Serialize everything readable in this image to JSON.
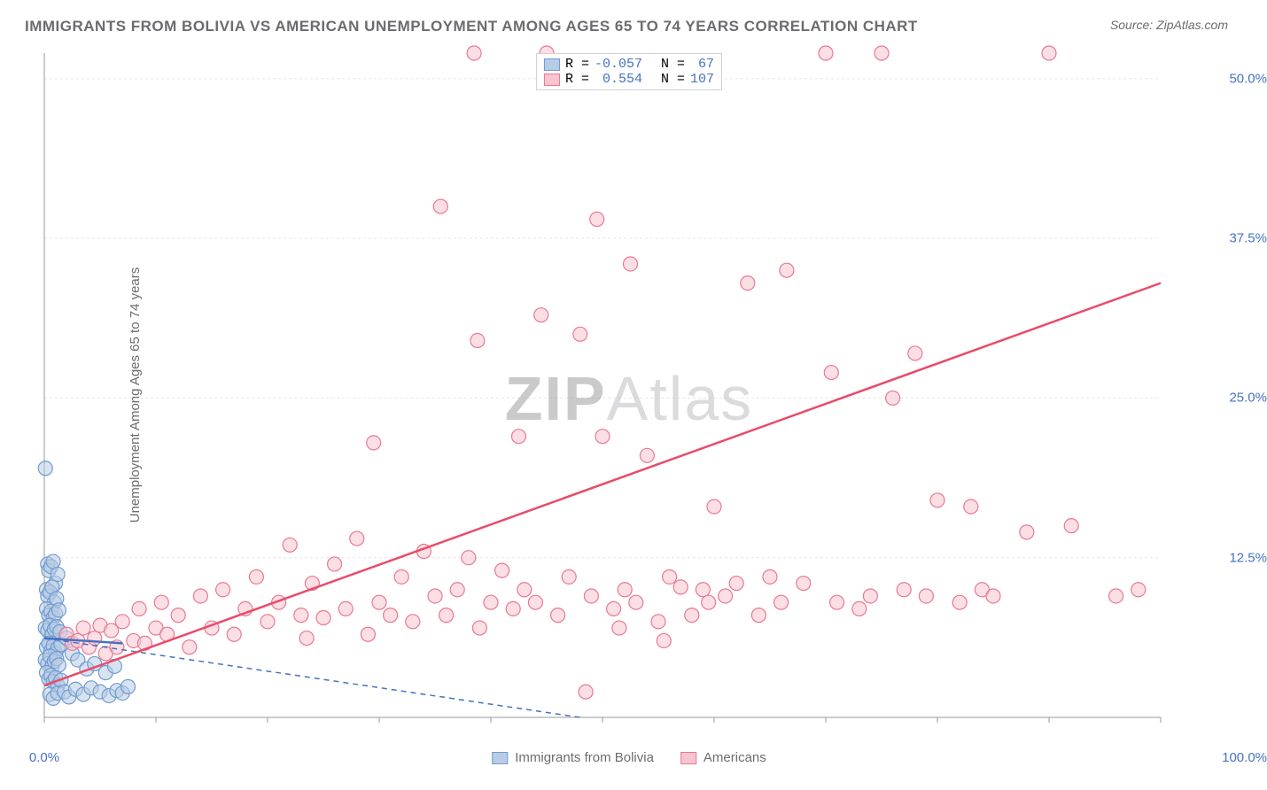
{
  "title": "IMMIGRANTS FROM BOLIVIA VS AMERICAN UNEMPLOYMENT AMONG AGES 65 TO 74 YEARS CORRELATION CHART",
  "source": "Source: ZipAtlas.com",
  "watermark_zip": "ZIP",
  "watermark_atlas": "Atlas",
  "chart": {
    "type": "scatter",
    "y_label": "Unemployment Among Ages 65 to 74 years",
    "x_label_legend": {
      "series1": "Immigrants from Bolivia",
      "series2": "Americans"
    },
    "xlim": [
      0,
      100
    ],
    "ylim": [
      0,
      52
    ],
    "x_ticks": [
      0,
      10,
      20,
      30,
      40,
      50,
      60,
      70,
      80,
      90,
      100
    ],
    "y_ticks": [
      12.5,
      25.0,
      37.5,
      50.0
    ],
    "x_tick_labels_visible": [
      "0.0%",
      "100.0%"
    ],
    "y_tick_labels": [
      "12.5%",
      "25.0%",
      "37.5%",
      "50.0%"
    ],
    "grid_color": "#e5e5e5",
    "axis_color": "#9a9a9a",
    "background_color": "#ffffff",
    "marker_radius": 8,
    "marker_opacity": 0.55,
    "series": [
      {
        "name": "Immigrants from Bolivia",
        "color_fill": "#b8cce4",
        "color_stroke": "#6f9bd1",
        "r_value": "-0.057",
        "n_value": "67",
        "trend": {
          "x1": 0,
          "y1": 6.2,
          "x2": 48,
          "y2": 0,
          "dashed": true,
          "color": "#4472c4",
          "width": 1.5
        },
        "trend_solid": {
          "x1": 0,
          "y1": 6.2,
          "x2": 7,
          "y2": 5.8,
          "color": "#4472c4",
          "width": 2.5
        },
        "points": [
          [
            0.1,
            19.5
          ],
          [
            0.3,
            12.0
          ],
          [
            0.4,
            11.5
          ],
          [
            0.6,
            11.8
          ],
          [
            0.8,
            12.2
          ],
          [
            1.0,
            10.5
          ],
          [
            1.2,
            11.2
          ],
          [
            0.2,
            10.0
          ],
          [
            0.3,
            9.5
          ],
          [
            0.5,
            9.8
          ],
          [
            0.7,
            10.2
          ],
          [
            0.9,
            9.0
          ],
          [
            1.1,
            9.3
          ],
          [
            0.2,
            8.5
          ],
          [
            0.4,
            8.0
          ],
          [
            0.6,
            8.3
          ],
          [
            0.8,
            7.8
          ],
          [
            1.0,
            8.1
          ],
          [
            1.3,
            8.4
          ],
          [
            0.1,
            7.0
          ],
          [
            0.3,
            6.8
          ],
          [
            0.5,
            7.2
          ],
          [
            0.7,
            6.5
          ],
          [
            0.9,
            6.9
          ],
          [
            1.1,
            7.1
          ],
          [
            1.4,
            6.7
          ],
          [
            0.2,
            5.5
          ],
          [
            0.4,
            5.8
          ],
          [
            0.6,
            5.2
          ],
          [
            0.8,
            5.6
          ],
          [
            1.0,
            5.0
          ],
          [
            1.2,
            5.4
          ],
          [
            1.5,
            5.7
          ],
          [
            0.1,
            4.5
          ],
          [
            0.3,
            4.2
          ],
          [
            0.5,
            4.8
          ],
          [
            0.7,
            4.0
          ],
          [
            0.9,
            4.4
          ],
          [
            1.1,
            4.6
          ],
          [
            1.3,
            4.1
          ],
          [
            0.2,
            3.5
          ],
          [
            0.4,
            3.0
          ],
          [
            0.6,
            3.3
          ],
          [
            0.8,
            2.8
          ],
          [
            1.0,
            3.1
          ],
          [
            1.2,
            2.5
          ],
          [
            1.5,
            2.9
          ],
          [
            0.5,
            1.8
          ],
          [
            0.8,
            1.5
          ],
          [
            1.2,
            1.9
          ],
          [
            1.8,
            2.0
          ],
          [
            2.2,
            1.6
          ],
          [
            2.8,
            2.2
          ],
          [
            3.5,
            1.8
          ],
          [
            4.2,
            2.3
          ],
          [
            5.0,
            2.0
          ],
          [
            5.8,
            1.7
          ],
          [
            6.5,
            2.1
          ],
          [
            7.0,
            1.9
          ],
          [
            7.5,
            2.4
          ],
          [
            2.0,
            6.2
          ],
          [
            2.5,
            5.0
          ],
          [
            3.0,
            4.5
          ],
          [
            3.8,
            3.8
          ],
          [
            4.5,
            4.2
          ],
          [
            5.5,
            3.5
          ],
          [
            6.3,
            4.0
          ]
        ]
      },
      {
        "name": "Americans",
        "color_fill": "#f8c4cf",
        "color_stroke": "#e87990",
        "r_value": "0.554",
        "n_value": "107",
        "trend": {
          "x1": 0,
          "y1": 2.5,
          "x2": 100,
          "y2": 34.0,
          "dashed": false,
          "color": "#e94b6a",
          "width": 2.5
        },
        "points": [
          [
            2,
            6.5
          ],
          [
            2.5,
            5.8
          ],
          [
            3,
            6.0
          ],
          [
            3.5,
            7.0
          ],
          [
            4,
            5.5
          ],
          [
            4.5,
            6.2
          ],
          [
            5,
            7.2
          ],
          [
            5.5,
            5.0
          ],
          [
            6,
            6.8
          ],
          [
            6.5,
            5.5
          ],
          [
            7,
            7.5
          ],
          [
            8,
            6.0
          ],
          [
            8.5,
            8.5
          ],
          [
            9,
            5.8
          ],
          [
            10,
            7.0
          ],
          [
            10.5,
            9.0
          ],
          [
            11,
            6.5
          ],
          [
            12,
            8.0
          ],
          [
            13,
            5.5
          ],
          [
            14,
            9.5
          ],
          [
            15,
            7.0
          ],
          [
            16,
            10.0
          ],
          [
            17,
            6.5
          ],
          [
            18,
            8.5
          ],
          [
            19,
            11.0
          ],
          [
            20,
            7.5
          ],
          [
            21,
            9.0
          ],
          [
            22,
            13.5
          ],
          [
            23,
            8.0
          ],
          [
            23.5,
            6.2
          ],
          [
            24,
            10.5
          ],
          [
            25,
            7.8
          ],
          [
            26,
            12.0
          ],
          [
            27,
            8.5
          ],
          [
            28,
            14.0
          ],
          [
            29,
            6.5
          ],
          [
            29.5,
            21.5
          ],
          [
            30,
            9.0
          ],
          [
            31,
            8.0
          ],
          [
            32,
            11.0
          ],
          [
            33,
            7.5
          ],
          [
            34,
            13.0
          ],
          [
            35,
            9.5
          ],
          [
            35.5,
            40.0
          ],
          [
            36,
            8.0
          ],
          [
            37,
            10.0
          ],
          [
            38,
            12.5
          ],
          [
            38.5,
            52.0
          ],
          [
            38.8,
            29.5
          ],
          [
            39,
            7.0
          ],
          [
            40,
            9.0
          ],
          [
            41,
            11.5
          ],
          [
            42,
            8.5
          ],
          [
            42.5,
            22.0
          ],
          [
            43,
            10.0
          ],
          [
            44,
            9.0
          ],
          [
            44.5,
            31.5
          ],
          [
            45,
            52.0
          ],
          [
            46,
            8.0
          ],
          [
            47,
            11.0
          ],
          [
            48,
            30.0
          ],
          [
            48.5,
            2.0
          ],
          [
            49,
            9.5
          ],
          [
            49.5,
            39.0
          ],
          [
            50,
            22.0
          ],
          [
            51,
            8.5
          ],
          [
            51.5,
            7.0
          ],
          [
            52,
            10.0
          ],
          [
            52.5,
            35.5
          ],
          [
            53,
            9.0
          ],
          [
            54,
            20.5
          ],
          [
            55,
            7.5
          ],
          [
            55.5,
            6.0
          ],
          [
            56,
            11.0
          ],
          [
            57,
            10.2
          ],
          [
            58,
            8.0
          ],
          [
            59,
            10.0
          ],
          [
            59.5,
            9.0
          ],
          [
            60,
            16.5
          ],
          [
            61,
            9.5
          ],
          [
            62,
            10.5
          ],
          [
            63,
            34.0
          ],
          [
            64,
            8.0
          ],
          [
            65,
            11.0
          ],
          [
            66,
            9.0
          ],
          [
            66.5,
            35.0
          ],
          [
            68,
            10.5
          ],
          [
            70,
            52.0
          ],
          [
            70.5,
            27.0
          ],
          [
            71,
            9.0
          ],
          [
            73,
            8.5
          ],
          [
            74,
            9.5
          ],
          [
            75,
            52.0
          ],
          [
            76,
            25.0
          ],
          [
            77,
            10.0
          ],
          [
            78,
            28.5
          ],
          [
            79,
            9.5
          ],
          [
            80,
            17.0
          ],
          [
            82,
            9.0
          ],
          [
            83,
            16.5
          ],
          [
            84,
            10.0
          ],
          [
            85,
            9.5
          ],
          [
            88,
            14.5
          ],
          [
            90,
            52.0
          ],
          [
            92,
            15.0
          ],
          [
            96,
            9.5
          ],
          [
            98,
            10.0
          ]
        ]
      }
    ],
    "legend_top_labels": {
      "r": "R =",
      "n": "N ="
    }
  }
}
